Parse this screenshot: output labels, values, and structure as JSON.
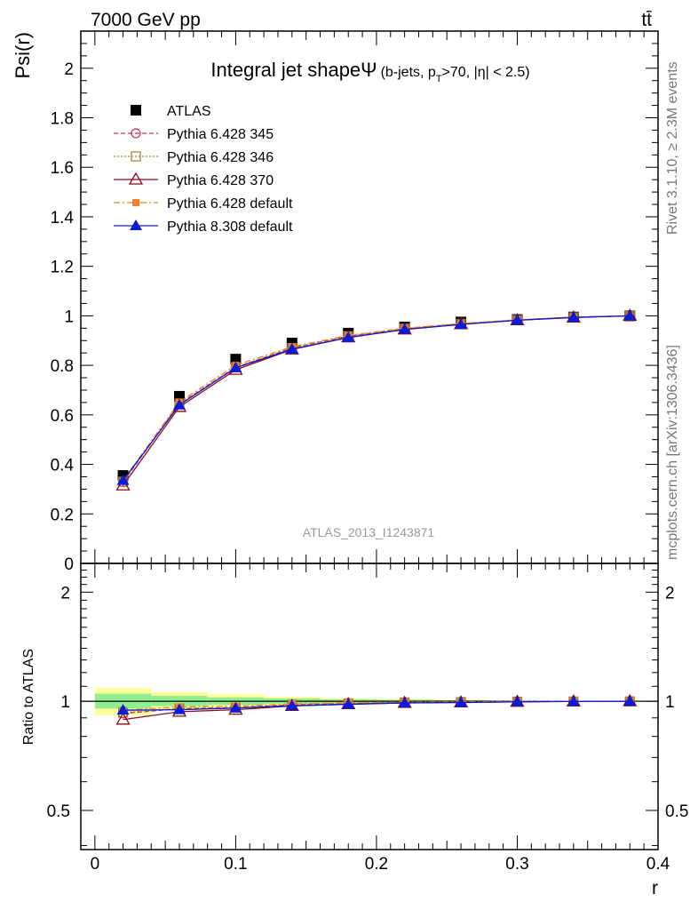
{
  "header": {
    "energy_label": "7000 GeV pp",
    "process_label": "tt̄",
    "rivet_label": "Rivet 3.1.10, ≥ 2.3M events",
    "mcplots_label": "mcplots.cern.ch [arXiv:1306.3436]",
    "analysis_label": "ATLAS_2013_I1243871"
  },
  "title": {
    "main": "Integral jet shape",
    "psi_symbol": "Ψ",
    "sub_a": "(b-jets, p",
    "sub_T": "T",
    "sub_b": ">70, |η| < 2.5)"
  },
  "colors": {
    "atlas": "#000000",
    "p345": "#c0334d",
    "p346": "#a0803a",
    "p370": "#8b0a1a",
    "pdefault": "#f57f2a",
    "p8": "#0b1bd6",
    "band_stat": "#90ee90",
    "band_total": "#ffff99"
  },
  "chart_data": [
    {
      "type": "line",
      "ylabel": "Psi(r)",
      "xlim": [
        -0.01,
        0.4
      ],
      "ylim": [
        0,
        2.15
      ],
      "yticks": [
        "0",
        "0.2",
        "0.4",
        "0.6",
        "0.8",
        "1",
        "1.2",
        "1.4",
        "1.6",
        "1.8",
        "2"
      ],
      "x": [
        0.02,
        0.06,
        0.1,
        0.14,
        0.18,
        0.22,
        0.26,
        0.3,
        0.34,
        0.38
      ],
      "legend_position": "top-left",
      "series": [
        {
          "name": "ATLAS",
          "values": [
            0.355,
            0.675,
            0.825,
            0.89,
            0.93,
            0.955,
            0.975,
            0.985,
            0.995,
            1.0
          ]
        },
        {
          "name": "Pythia 6.428 345",
          "values": [
            0.328,
            0.645,
            0.792,
            0.87,
            0.918,
            0.948,
            0.968,
            0.983,
            0.994,
            1.0
          ]
        },
        {
          "name": "Pythia 6.428 346",
          "values": [
            0.33,
            0.645,
            0.792,
            0.87,
            0.918,
            0.948,
            0.968,
            0.983,
            0.994,
            1.0
          ]
        },
        {
          "name": "Pythia 6.428 370",
          "values": [
            0.315,
            0.632,
            0.782,
            0.864,
            0.913,
            0.945,
            0.966,
            0.982,
            0.993,
            1.0
          ]
        },
        {
          "name": "Pythia 6.428 default",
          "values": [
            0.335,
            0.652,
            0.8,
            0.875,
            0.921,
            0.95,
            0.969,
            0.984,
            0.995,
            1.0
          ]
        },
        {
          "name": "Pythia 8.308 default",
          "values": [
            0.335,
            0.64,
            0.79,
            0.865,
            0.912,
            0.945,
            0.965,
            0.982,
            0.994,
            1.0
          ]
        }
      ]
    },
    {
      "type": "line",
      "xlabel": "r",
      "ylabel": "Ratio to ATLAS",
      "xlim": [
        -0.01,
        0.4
      ],
      "ylim": [
        0.39,
        2.4
      ],
      "log_y": true,
      "yticks": [
        "0.5",
        "1",
        "2"
      ],
      "xticks": [
        "0",
        "0.1",
        "0.2",
        "0.3",
        "0.4"
      ],
      "x": [
        0.02,
        0.06,
        0.1,
        0.14,
        0.18,
        0.22,
        0.26,
        0.3,
        0.34,
        0.38
      ],
      "bands": {
        "edges": [
          0.0,
          0.04,
          0.08,
          0.12,
          0.16,
          0.2,
          0.24,
          0.28,
          0.32,
          0.36,
          0.4
        ],
        "total": [
          [
            0.915,
            1.09
          ],
          [
            0.945,
            1.06
          ],
          [
            0.96,
            1.045
          ],
          [
            0.975,
            1.03
          ],
          [
            0.98,
            1.02
          ],
          [
            0.985,
            1.015
          ],
          [
            0.99,
            1.01
          ],
          [
            0.995,
            1.005
          ],
          [
            0.998,
            1.002
          ],
          [
            1.0,
            1.0
          ]
        ],
        "stat": [
          [
            0.955,
            1.05
          ],
          [
            0.97,
            1.035
          ],
          [
            0.978,
            1.025
          ],
          [
            0.985,
            1.018
          ],
          [
            0.988,
            1.012
          ],
          [
            0.99,
            1.01
          ],
          [
            0.993,
            1.007
          ],
          [
            0.998,
            1.002
          ],
          [
            0.999,
            1.001
          ],
          [
            1.0,
            1.0
          ]
        ]
      },
      "series": [
        {
          "name": "Pythia 6.428 345",
          "values": [
            0.925,
            0.955,
            0.96,
            0.978,
            0.987,
            0.993,
            0.995,
            0.998,
            0.999,
            1.0
          ]
        },
        {
          "name": "Pythia 6.428 346",
          "values": [
            0.93,
            0.955,
            0.96,
            0.978,
            0.987,
            0.993,
            0.995,
            0.998,
            0.999,
            1.0
          ]
        },
        {
          "name": "Pythia 6.428 370",
          "values": [
            0.89,
            0.936,
            0.948,
            0.971,
            0.982,
            0.99,
            0.993,
            0.997,
            0.999,
            1.0
          ]
        },
        {
          "name": "Pythia 6.428 default",
          "values": [
            0.945,
            0.965,
            0.97,
            0.983,
            0.99,
            0.995,
            0.996,
            0.999,
            1.0,
            1.0
          ]
        },
        {
          "name": "Pythia 8.308 default",
          "values": [
            0.945,
            0.948,
            0.958,
            0.972,
            0.981,
            0.99,
            0.992,
            0.997,
            0.999,
            1.0
          ]
        }
      ]
    }
  ]
}
